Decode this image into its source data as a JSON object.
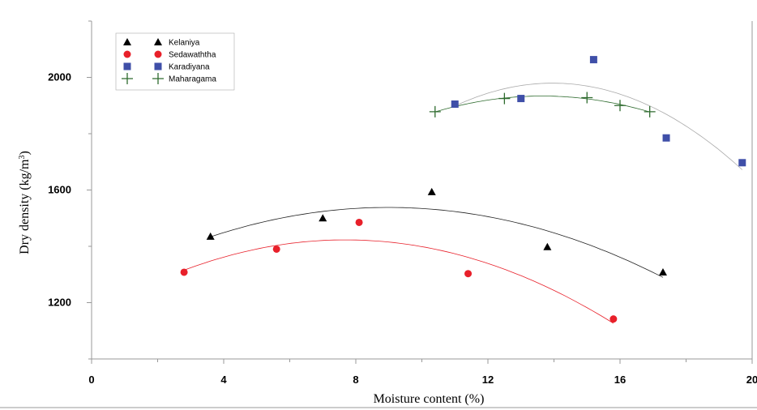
{
  "chart_data": {
    "type": "scatter",
    "xlabel": "Moisture content (%)",
    "ylabel": "Dry density (kg/m",
    "ylabel_sup": "3",
    "ylabel_end": ")",
    "xlim": [
      0,
      20
    ],
    "ylim": [
      1000,
      2200
    ],
    "x_ticks": [
      0,
      4,
      8,
      12,
      16,
      20
    ],
    "y_ticks": [
      1200,
      1600,
      2000
    ],
    "grid": false,
    "legend_position": "top-left",
    "series": [
      {
        "name": "Kelaniya",
        "marker": "triangle",
        "color": "#000000",
        "curve_color": "#222222",
        "x": [
          3.6,
          7.0,
          10.3,
          13.8,
          17.3
        ],
        "y": [
          1435,
          1500,
          1593,
          1398,
          1308
        ]
      },
      {
        "name": "Sedawaththa",
        "marker": "circle",
        "color": "#e8202a",
        "curve_color": "#e8202a",
        "x": [
          2.8,
          5.6,
          8.1,
          11.4,
          15.8
        ],
        "y": [
          1308,
          1390,
          1485,
          1303,
          1142
        ]
      },
      {
        "name": "Karadiyana",
        "marker": "square",
        "color": "#3f4fa8",
        "curve_color": "#aaaaaa",
        "x": [
          11.0,
          13.0,
          15.2,
          17.4,
          19.7
        ],
        "y": [
          1905,
          1925,
          2063,
          1785,
          1697
        ]
      },
      {
        "name": "Maharagama",
        "marker": "plus",
        "color": "#2e6b2e",
        "curve_color": "#2e6b2e",
        "x": [
          10.4,
          12.5,
          15.0,
          16.0,
          16.9
        ],
        "y": [
          1878,
          1925,
          1928,
          1900,
          1878
        ]
      }
    ]
  }
}
